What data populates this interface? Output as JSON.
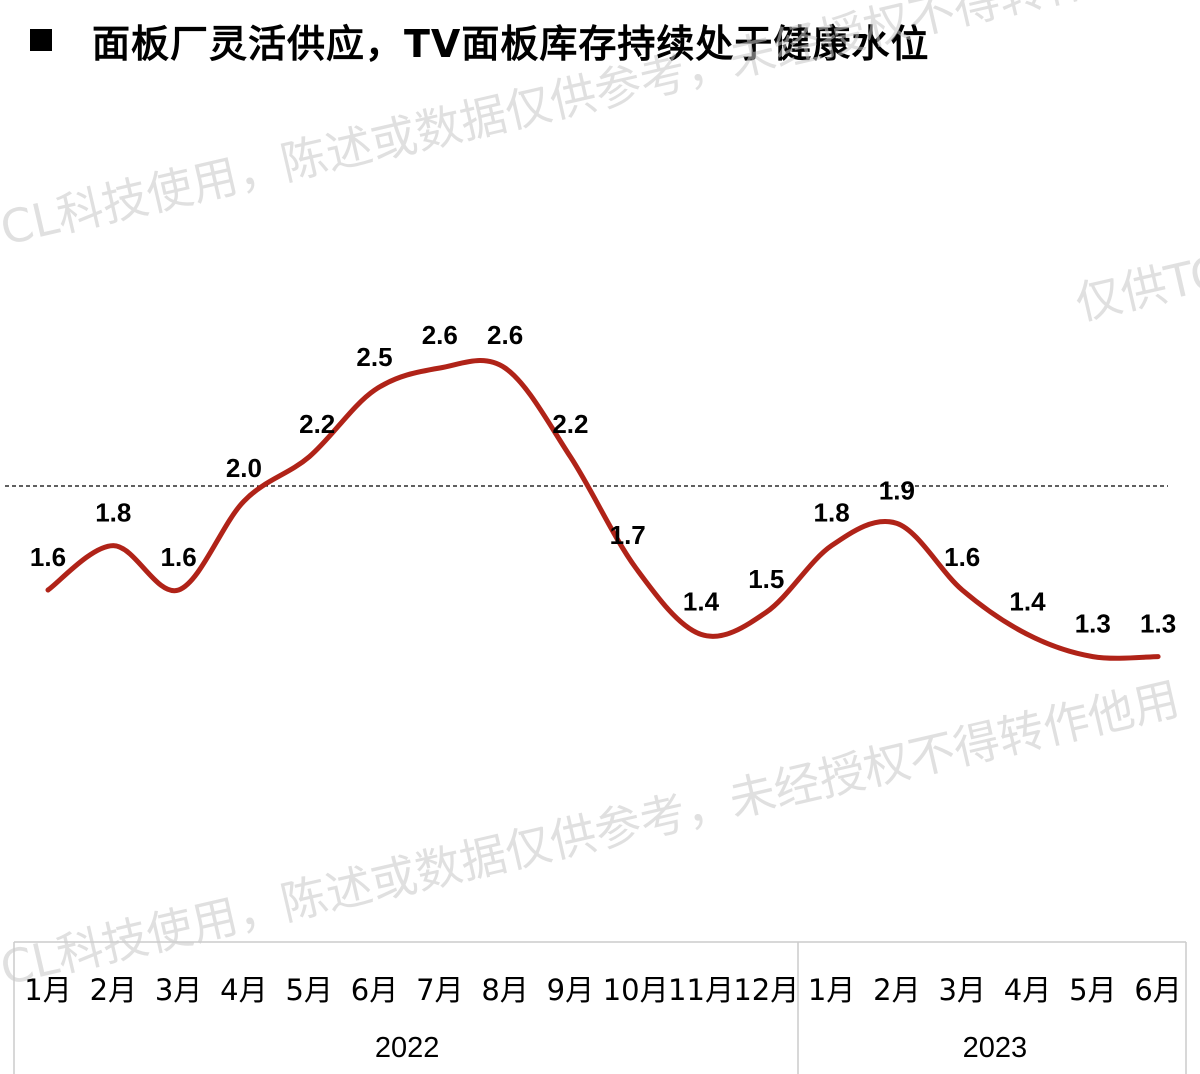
{
  "title": "面板厂灵活供应，TV面板库存持续处于健康水位",
  "watermark": {
    "lines": [
      "CL科技使用，陈述或数据仅供参考，未经授权不得转作他用",
      "仅供TC",
      "CL科技使用，陈述或数据仅供参考，未经授权不得转作他用"
    ]
  },
  "colors": {
    "line": "#b02318",
    "reference_line": "#000000",
    "axis": "#cccccc"
  },
  "chart_data": {
    "type": "line",
    "title": "",
    "xlabel": "",
    "ylabel": "",
    "categories": [
      "1月",
      "2月",
      "3月",
      "4月",
      "5月",
      "6月",
      "7月",
      "8月",
      "9月",
      "10月",
      "11月",
      "12月",
      "1月",
      "2月",
      "3月",
      "4月",
      "5月",
      "6月"
    ],
    "year_groups": [
      {
        "label": "2022",
        "count": 12
      },
      {
        "label": "2023",
        "count": 6
      }
    ],
    "values": [
      1.6,
      1.8,
      1.6,
      2.0,
      2.2,
      2.5,
      2.6,
      2.6,
      2.2,
      1.7,
      1.4,
      1.5,
      1.8,
      1.9,
      1.6,
      1.4,
      1.3,
      1.3
    ],
    "value_labels": [
      "1.6",
      "1.8",
      "1.6",
      "2.0",
      "2.2",
      "2.5",
      "2.6",
      "2.6",
      "2.2",
      "1.7",
      "1.4",
      "1.5",
      "1.8",
      "1.9",
      "1.6",
      "1.4",
      "1.3",
      "1.3"
    ],
    "reference_line": 2.0,
    "ylim": [
      0,
      3.3
    ],
    "grid": false,
    "smooth": true,
    "legend": "none"
  }
}
